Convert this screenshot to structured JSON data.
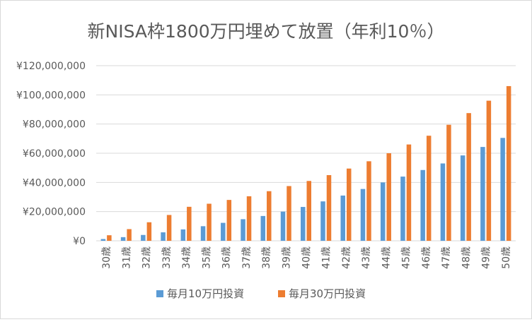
{
  "chart_data": {
    "type": "bar",
    "title": "新NISA枠1800万円埋めて放置（年利10％）",
    "xlabel": "",
    "ylabel": "",
    "ylim": [
      0,
      120000000
    ],
    "y_tick_values": [
      0,
      20000000,
      40000000,
      60000000,
      80000000,
      100000000,
      120000000
    ],
    "y_tick_labels": [
      "¥0",
      "¥20,000,000",
      "¥40,000,000",
      "¥60,000,000",
      "¥80,000,000",
      "¥100,000,000",
      "¥120,000,000"
    ],
    "grid": true,
    "legend_position": "bottom",
    "categories": [
      "30歳",
      "31歳",
      "32歳",
      "33歳",
      "34歳",
      "35歳",
      "36歳",
      "37歳",
      "38歳",
      "39歳",
      "40歳",
      "41歳",
      "42歳",
      "43歳",
      "44歳",
      "45歳",
      "46歳",
      "47歳",
      "48歳",
      "49歳",
      "50歳"
    ],
    "series": [
      {
        "name": "毎月10万円投資",
        "color": "#5b9bd5",
        "values": [
          1200000,
          2500000,
          4000000,
          5800000,
          7800000,
          10000000,
          12300000,
          14800000,
          17000000,
          20000000,
          23200000,
          27000000,
          31000000,
          35500000,
          40000000,
          44000000,
          48500000,
          53000000,
          58500000,
          64300000,
          70500000
        ]
      },
      {
        "name": "毎月30万円投資",
        "color": "#ed7d31",
        "values": [
          3800000,
          8000000,
          12700000,
          17700000,
          23300000,
          25400000,
          28000000,
          30500000,
          34000000,
          37500000,
          41000000,
          45000000,
          49500000,
          54500000,
          60000000,
          66000000,
          72000000,
          79500000,
          87500000,
          96000000,
          106000000
        ]
      }
    ]
  }
}
